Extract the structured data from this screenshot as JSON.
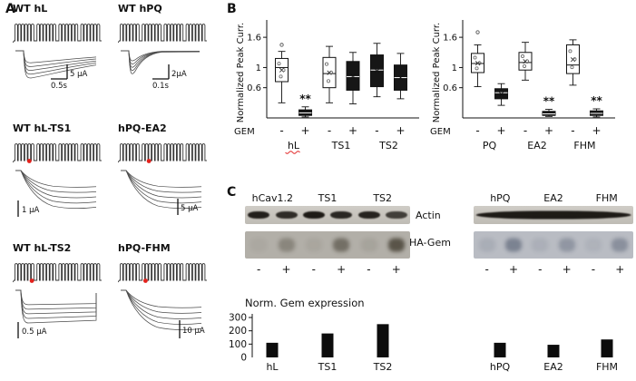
{
  "panels": {
    "A": {
      "label": "A",
      "subpanels": [
        {
          "title": "WT hL",
          "scale_vertical": "5 µA",
          "scale_time": "0.5s",
          "mutation_dot": false,
          "dot_pos": 0
        },
        {
          "title": "WT hPQ",
          "scale_vertical": "2µA",
          "scale_time": "0.1s",
          "mutation_dot": false,
          "dot_pos": 0
        },
        {
          "title": "WT hL-TS1",
          "scale_vertical": "1 µA",
          "scale_time": "",
          "mutation_dot": true,
          "dot_pos": 0.17
        },
        {
          "title": "hPQ-EA2",
          "scale_vertical": "5 µA",
          "scale_time": "",
          "mutation_dot": true,
          "dot_pos": 0.34
        },
        {
          "title": "WT hL-TS2",
          "scale_vertical": "0.5 µA",
          "scale_time": "",
          "mutation_dot": true,
          "dot_pos": 0.2
        },
        {
          "title": "hPQ-FHM",
          "scale_vertical": "10 µA",
          "scale_time": "",
          "mutation_dot": true,
          "dot_pos": 0.3
        }
      ]
    },
    "B": {
      "label": "B"
    },
    "C": {
      "label": "C",
      "row_labels": [
        "Actin",
        "HA-Gem"
      ],
      "blots": [
        {
          "headers": [
            "hCav1.2",
            "TS1",
            "TS2"
          ],
          "lane_signs": [
            "-",
            "+",
            "-",
            "+",
            "-",
            "+"
          ],
          "actin_style": "lanes",
          "actin_bands": [
            0.92,
            0.85,
            0.95,
            0.88,
            0.9,
            0.75
          ],
          "hagem_bands": [
            0.06,
            0.38,
            0.08,
            0.6,
            0.1,
            0.85
          ],
          "hagem_tint": "#b2afa8"
        },
        {
          "headers": [
            "hPQ",
            "EA2",
            "FHM"
          ],
          "lane_signs": [
            "-",
            "+",
            "-",
            "+",
            "-",
            "+"
          ],
          "actin_style": "continuous",
          "actin_bands": [
            0.95
          ],
          "hagem_bands": [
            0.12,
            0.5,
            0.1,
            0.32,
            0.08,
            0.38
          ],
          "hagem_tint": "#b9bcc3"
        }
      ]
    }
  },
  "chart_data": [
    {
      "type": "boxplot",
      "ylabel": "Normalized Peak Curr.",
      "yticks": [
        1.6,
        1,
        0.6
      ],
      "ylim": [
        0,
        1.8
      ],
      "x_axis_label": "GEM",
      "groups": [
        {
          "label": "hL",
          "red_underline": true,
          "boxes": [
            {
              "sign": "-",
              "lo": 0.3,
              "q1": 0.72,
              "median": 1.0,
              "q3": 1.18,
              "hi": 1.32,
              "fill": "white",
              "sig": "",
              "outliers": [
                1.45
              ]
            },
            {
              "sign": "+",
              "lo": 0.02,
              "q1": 0.05,
              "median": 0.1,
              "q3": 0.16,
              "hi": 0.22,
              "fill": "black",
              "sig": "**",
              "outliers": []
            }
          ]
        },
        {
          "label": "TS1",
          "red_underline": false,
          "boxes": [
            {
              "sign": "-",
              "lo": 0.3,
              "q1": 0.6,
              "median": 0.88,
              "q3": 1.2,
              "hi": 1.42,
              "fill": "white",
              "sig": "",
              "outliers": []
            },
            {
              "sign": "+",
              "lo": 0.28,
              "q1": 0.55,
              "median": 0.82,
              "q3": 1.12,
              "hi": 1.3,
              "fill": "black",
              "sig": "",
              "outliers": []
            }
          ]
        },
        {
          "label": "TS2",
          "red_underline": false,
          "boxes": [
            {
              "sign": "-",
              "lo": 0.42,
              "q1": 0.62,
              "median": 0.95,
              "q3": 1.25,
              "hi": 1.48,
              "fill": "black",
              "sig": "",
              "outliers": []
            },
            {
              "sign": "+",
              "lo": 0.38,
              "q1": 0.55,
              "median": 0.8,
              "q3": 1.05,
              "hi": 1.28,
              "fill": "black",
              "sig": "",
              "outliers": []
            }
          ]
        }
      ]
    },
    {
      "type": "boxplot",
      "ylabel": "Normalized Peak Curr.",
      "yticks": [
        1.6,
        1,
        0.6
      ],
      "ylim": [
        0,
        1.8
      ],
      "x_axis_label": "GEM",
      "groups": [
        {
          "label": "PQ",
          "red_underline": false,
          "boxes": [
            {
              "sign": "-",
              "lo": 0.62,
              "q1": 0.9,
              "median": 1.08,
              "q3": 1.28,
              "hi": 1.45,
              "fill": "white",
              "sig": "",
              "outliers": [
                1.7
              ]
            },
            {
              "sign": "+",
              "lo": 0.25,
              "q1": 0.38,
              "median": 0.5,
              "q3": 0.58,
              "hi": 0.68,
              "fill": "black",
              "sig": "",
              "outliers": []
            }
          ]
        },
        {
          "label": "EA2",
          "red_underline": false,
          "boxes": [
            {
              "sign": "-",
              "lo": 0.75,
              "q1": 0.95,
              "median": 1.1,
              "q3": 1.3,
              "hi": 1.5,
              "fill": "white",
              "sig": "",
              "outliers": []
            },
            {
              "sign": "+",
              "lo": 0.03,
              "q1": 0.05,
              "median": 0.08,
              "q3": 0.13,
              "hi": 0.17,
              "fill": "black",
              "sig": "**",
              "outliers": []
            }
          ]
        },
        {
          "label": "FHM",
          "red_underline": false,
          "boxes": [
            {
              "sign": "-",
              "lo": 0.65,
              "q1": 0.88,
              "median": 1.05,
              "q3": 1.45,
              "hi": 1.55,
              "fill": "white",
              "sig": "",
              "outliers": []
            },
            {
              "sign": "+",
              "lo": 0.02,
              "q1": 0.05,
              "median": 0.09,
              "q3": 0.14,
              "hi": 0.18,
              "fill": "black",
              "sig": "**",
              "outliers": []
            }
          ]
        }
      ]
    },
    {
      "type": "bar",
      "title": "Norm. Gem expression",
      "yticks": [
        300,
        200,
        100
      ],
      "origin_label": "0",
      "ylim": [
        0,
        300
      ],
      "categories": [
        "hL",
        "TS1",
        "TS2",
        "hPQ",
        "EA2",
        "FHM"
      ],
      "values": [
        110,
        180,
        250,
        110,
        95,
        135
      ]
    }
  ]
}
